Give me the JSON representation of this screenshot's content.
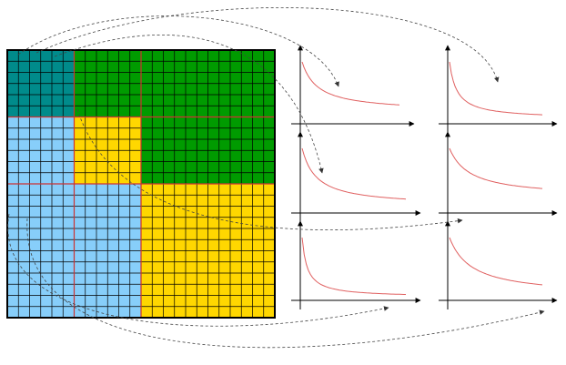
{
  "colors": {
    "teal": "#008B8B",
    "green": "#009B00",
    "light_blue": "#87CEFA",
    "yellow": "#FFD700",
    "grid": "#000000",
    "partition": "#cc3333",
    "curve": "#e06060",
    "axes": "#000000",
    "arrows": "#444444"
  },
  "matrix": {
    "cells_per_side": 24,
    "blocks": [
      {
        "name": "block-teal",
        "color": "teal",
        "cells": [
          0,
          0,
          6,
          6
        ]
      },
      {
        "name": "block-green-top",
        "color": "green",
        "cells": [
          6,
          0,
          18,
          6
        ]
      },
      {
        "name": "block-light-blue-middle",
        "color": "light_blue",
        "cells": [
          0,
          6,
          6,
          6
        ]
      },
      {
        "name": "block-yellow-small",
        "color": "yellow",
        "cells": [
          6,
          6,
          6,
          6
        ]
      },
      {
        "name": "block-green-right",
        "color": "green",
        "cells": [
          12,
          6,
          12,
          6
        ]
      },
      {
        "name": "block-light-blue-bottom",
        "color": "light_blue",
        "cells": [
          0,
          12,
          12,
          12
        ]
      },
      {
        "name": "block-yellow-large",
        "color": "yellow",
        "cells": [
          12,
          12,
          12,
          12
        ]
      }
    ],
    "partition_lines_at_cells": [
      6,
      12
    ]
  },
  "decay_plots": [
    {
      "name": "decay-plot-1",
      "steepness": 0.16,
      "end_level": 0.17
    },
    {
      "name": "decay-plot-2",
      "steepness": 0.08,
      "end_level": 0.05
    },
    {
      "name": "decay-plot-3",
      "steepness": 0.14,
      "end_level": 0.08
    },
    {
      "name": "decay-plot-4",
      "steepness": 0.22,
      "end_level": 0.22
    },
    {
      "name": "decay-plot-5",
      "steepness": 0.05,
      "end_level": 0.02
    },
    {
      "name": "decay-plot-6",
      "steepness": 0.24,
      "end_level": 0.04
    }
  ]
}
